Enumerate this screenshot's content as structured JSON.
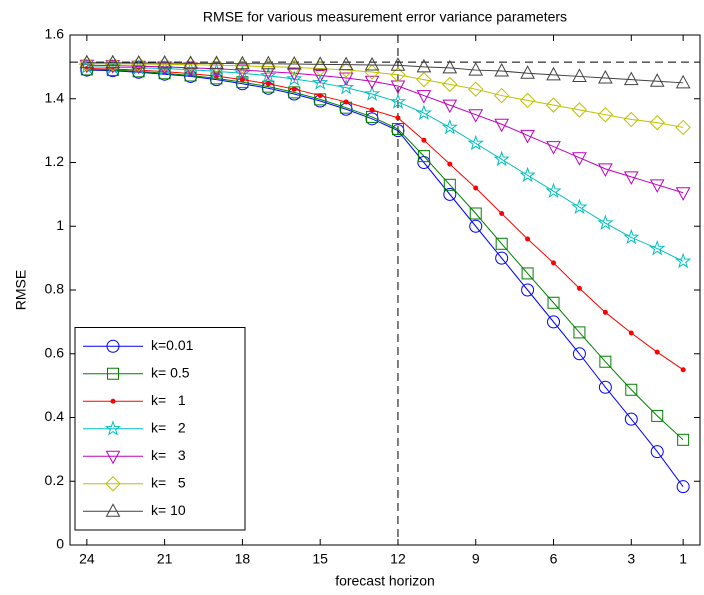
{
  "chart_data": {
    "type": "line",
    "title": "RMSE for various measurement error variance parameters",
    "x_label": "forecast horizon",
    "y_label": "RMSE",
    "x": [
      24,
      23,
      22,
      21,
      20,
      19,
      18,
      17,
      16,
      15,
      14,
      13,
      12,
      11,
      10,
      9,
      8,
      7,
      6,
      5,
      4,
      3,
      2,
      1
    ],
    "xlim": [
      24.65,
      0.35
    ],
    "xticks": [
      24,
      21,
      18,
      15,
      12,
      9,
      6,
      3,
      1
    ],
    "ylim": [
      0,
      1.6
    ],
    "yticks": [
      0,
      0.2,
      0.4,
      0.6,
      0.8,
      1,
      1.2,
      1.4,
      1.6
    ],
    "hline": 1.515,
    "vline": 12,
    "legend": "lower left",
    "series": [
      {
        "name": "k=0.01",
        "color": "#0000ff",
        "marker": "circle",
        "values": [
          1.49,
          1.488,
          1.483,
          1.477,
          1.47,
          1.46,
          1.447,
          1.433,
          1.415,
          1.393,
          1.367,
          1.337,
          1.3,
          1.2,
          1.1,
          1.0,
          0.9,
          0.8,
          0.7,
          0.6,
          0.495,
          0.395,
          0.293,
          0.183
        ]
      },
      {
        "name": "k= 0.5",
        "color": "#008000",
        "marker": "square",
        "values": [
          1.492,
          1.49,
          1.486,
          1.48,
          1.473,
          1.464,
          1.452,
          1.438,
          1.42,
          1.398,
          1.372,
          1.343,
          1.305,
          1.22,
          1.13,
          1.04,
          0.945,
          0.852,
          0.76,
          0.667,
          0.575,
          0.487,
          0.405,
          0.33
        ]
      },
      {
        "name": "k=   1",
        "color": "#ff0000",
        "marker": "dot",
        "values": [
          1.495,
          1.493,
          1.49,
          1.485,
          1.479,
          1.471,
          1.46,
          1.447,
          1.43,
          1.41,
          1.39,
          1.365,
          1.34,
          1.27,
          1.195,
          1.12,
          1.04,
          0.96,
          0.885,
          0.805,
          0.73,
          0.665,
          0.605,
          0.55
        ]
      },
      {
        "name": "k=   2",
        "color": "#00bfbf",
        "marker": "star",
        "values": [
          1.5,
          1.499,
          1.497,
          1.495,
          1.491,
          1.486,
          1.48,
          1.472,
          1.462,
          1.45,
          1.435,
          1.415,
          1.39,
          1.355,
          1.31,
          1.26,
          1.21,
          1.16,
          1.11,
          1.06,
          1.01,
          0.965,
          0.93,
          0.89
        ]
      },
      {
        "name": "k=   3",
        "color": "#bf00bf",
        "marker": "triangle-down",
        "values": [
          1.505,
          1.504,
          1.502,
          1.5,
          1.497,
          1.494,
          1.49,
          1.485,
          1.48,
          1.473,
          1.465,
          1.455,
          1.44,
          1.41,
          1.38,
          1.35,
          1.32,
          1.285,
          1.25,
          1.215,
          1.18,
          1.155,
          1.13,
          1.105
        ]
      },
      {
        "name": "k=   5",
        "color": "#bfbf00",
        "marker": "diamond",
        "values": [
          1.51,
          1.51,
          1.509,
          1.508,
          1.507,
          1.505,
          1.503,
          1.501,
          1.498,
          1.495,
          1.49,
          1.484,
          1.475,
          1.46,
          1.445,
          1.43,
          1.41,
          1.395,
          1.38,
          1.365,
          1.35,
          1.335,
          1.325,
          1.31
        ]
      },
      {
        "name": "k= 10",
        "color": "#404040",
        "marker": "triangle-up",
        "values": [
          1.513,
          1.513,
          1.512,
          1.512,
          1.511,
          1.511,
          1.51,
          1.51,
          1.509,
          1.508,
          1.507,
          1.506,
          1.505,
          1.5,
          1.497,
          1.49,
          1.487,
          1.48,
          1.475,
          1.47,
          1.465,
          1.46,
          1.455,
          1.45
        ]
      }
    ]
  }
}
